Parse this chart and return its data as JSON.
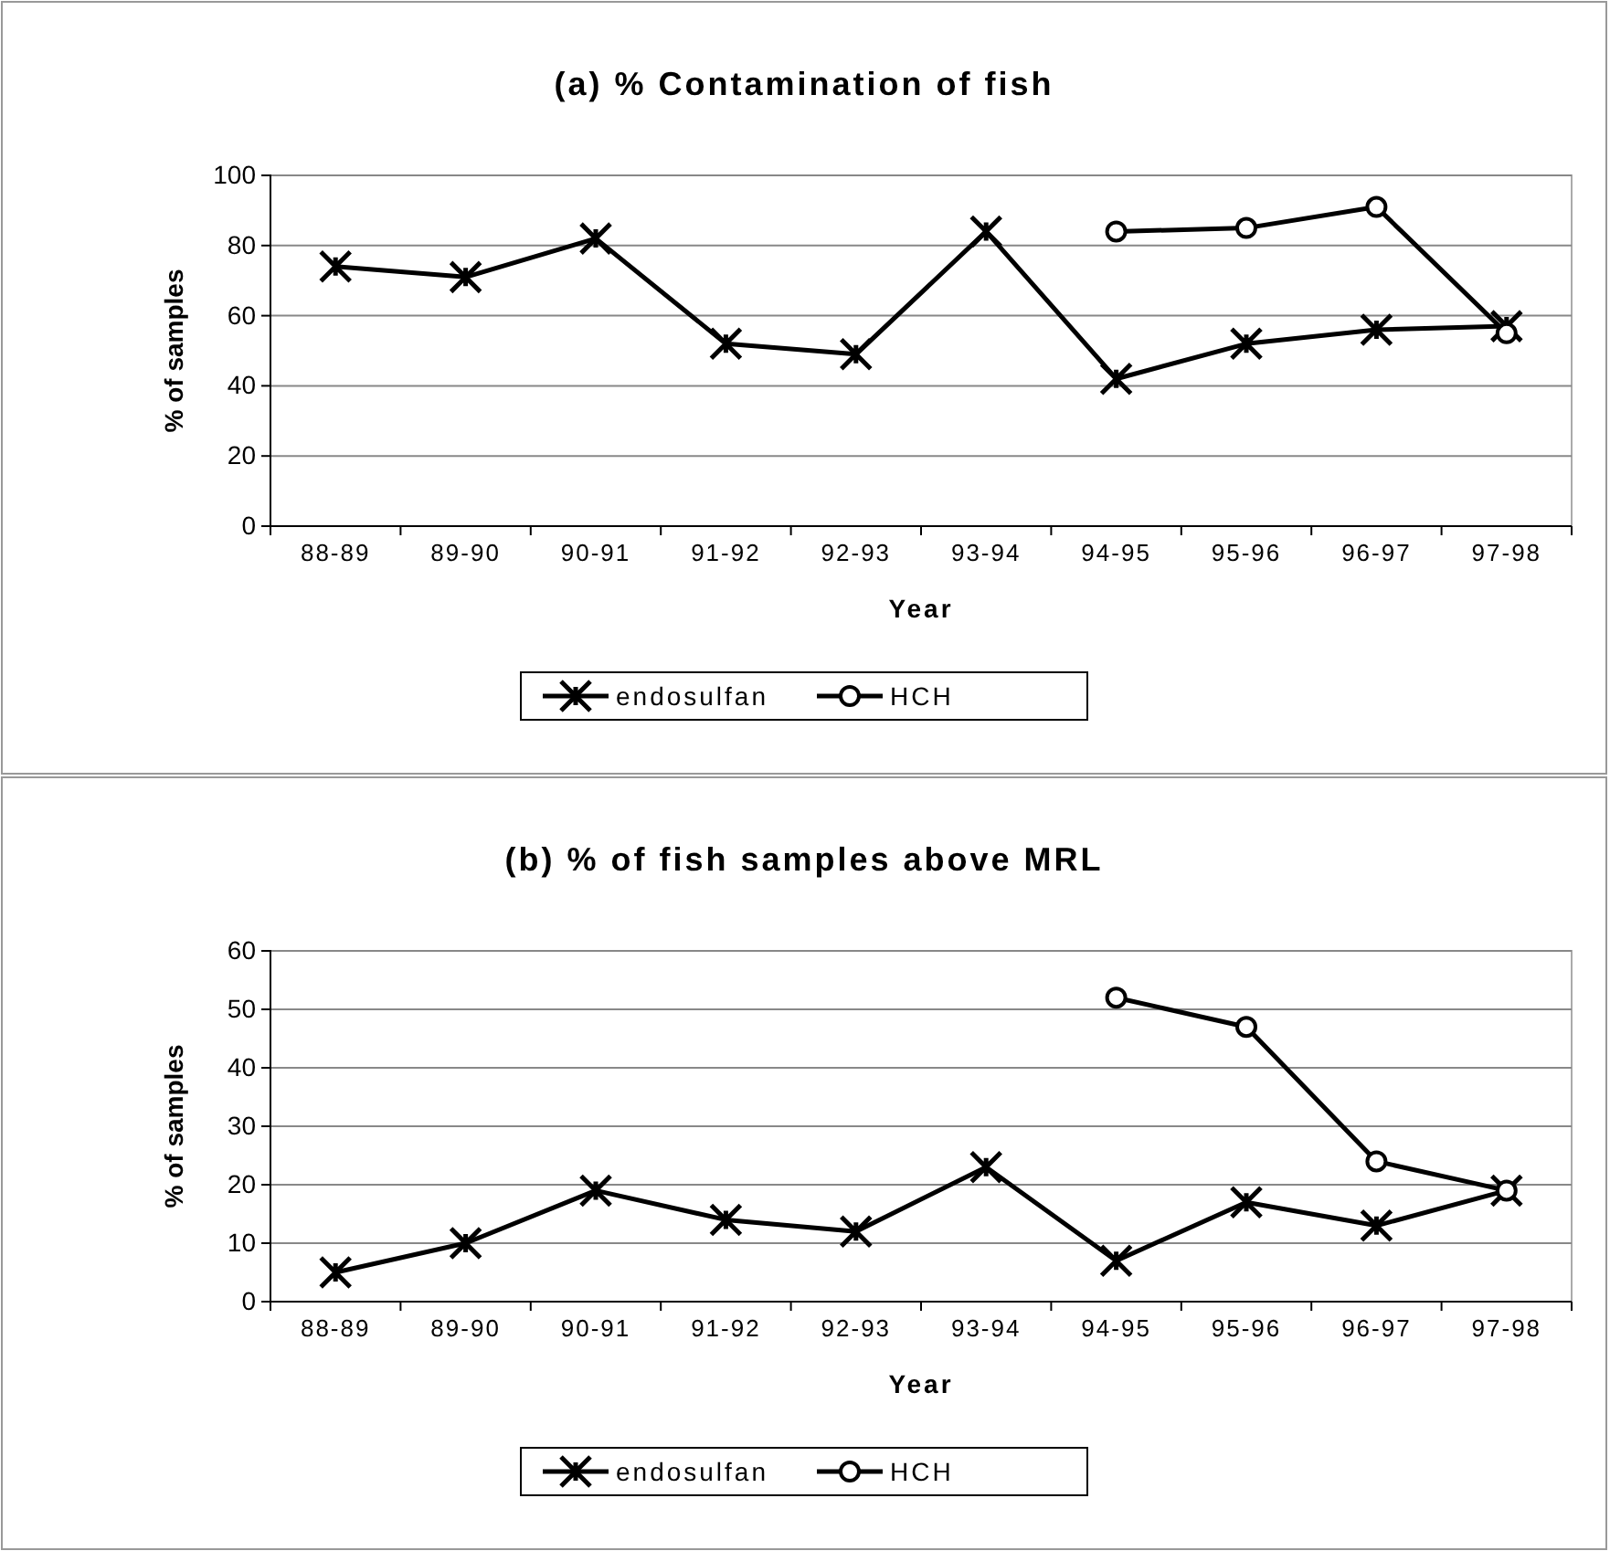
{
  "chart_data": [
    {
      "type": "line",
      "title": "(a) % Contamination of fish",
      "xlabel": "Year",
      "ylabel": "% of samples",
      "categories": [
        "88-89",
        "89-90",
        "90-91",
        "91-92",
        "92-93",
        "93-94",
        "94-95",
        "95-96",
        "96-97",
        "97-98"
      ],
      "series": [
        {
          "name": "endosulfan",
          "color": "#000000",
          "marker": "cross",
          "values": [
            74,
            71,
            82,
            52,
            49,
            84,
            42,
            52,
            56,
            57
          ]
        },
        {
          "name": "HCH",
          "color": "#000000",
          "marker": "circle",
          "values": [
            null,
            null,
            null,
            null,
            null,
            null,
            84,
            85,
            91,
            55
          ]
        }
      ],
      "ylim": [
        0,
        100
      ],
      "yticks": [
        0,
        20,
        40,
        60,
        80,
        100
      ],
      "grid": "y",
      "legend": "bottom"
    },
    {
      "type": "line",
      "title": "(b) % of fish samples above MRL",
      "xlabel": "Year",
      "ylabel": "% of samples",
      "categories": [
        "88-89",
        "89-90",
        "90-91",
        "91-92",
        "92-93",
        "93-94",
        "94-95",
        "95-96",
        "96-97",
        "97-98"
      ],
      "series": [
        {
          "name": "endosulfan",
          "color": "#000000",
          "marker": "cross",
          "values": [
            5,
            10,
            19,
            14,
            12,
            23,
            7,
            17,
            13,
            19
          ]
        },
        {
          "name": "HCH",
          "color": "#000000",
          "marker": "circle",
          "values": [
            null,
            null,
            null,
            null,
            null,
            null,
            52,
            47,
            24,
            19
          ]
        }
      ],
      "ylim": [
        0,
        60
      ],
      "yticks": [
        0,
        10,
        20,
        30,
        40,
        50,
        60
      ],
      "grid": "y",
      "legend": "bottom"
    }
  ]
}
